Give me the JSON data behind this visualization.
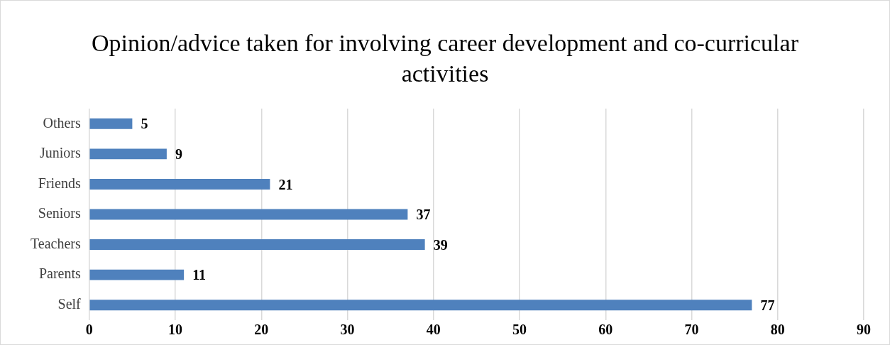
{
  "chart_data": {
    "type": "bar",
    "orientation": "horizontal",
    "title": "Opinion/advice taken for involving career development and co-curricular activities",
    "categories": [
      "Others",
      "Juniors",
      "Friends",
      "Seniors",
      "Teachers",
      "Parents",
      "Self"
    ],
    "values": [
      5,
      9,
      21,
      37,
      39,
      11,
      77
    ],
    "color": "#4f81bd",
    "xlim": [
      0,
      90
    ],
    "xticks": [
      0,
      10,
      20,
      30,
      40,
      50,
      60,
      70,
      80,
      90
    ],
    "grid": "x",
    "data_labels": true,
    "legend": false
  }
}
